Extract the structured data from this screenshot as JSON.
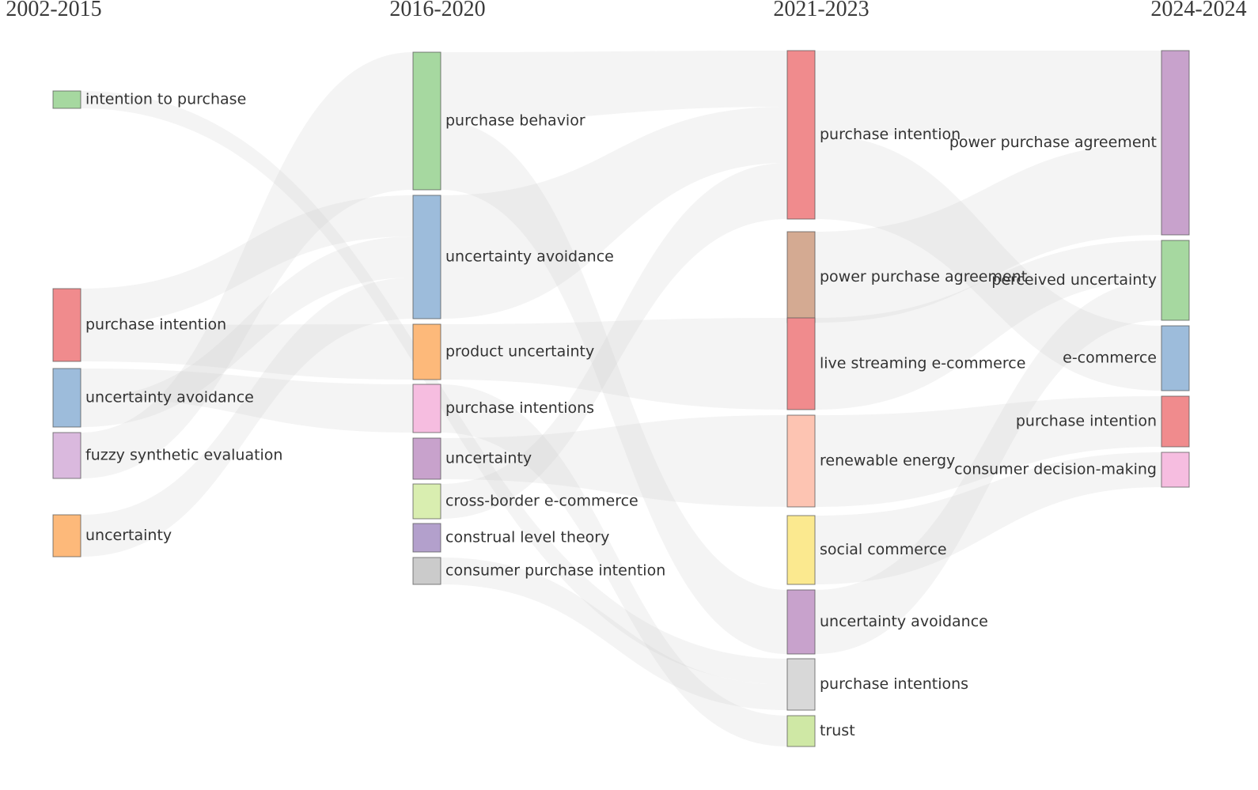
{
  "periods": [
    "2002-2015",
    "2016-2020",
    "2021-2023",
    "2024-2024"
  ],
  "columns": [
    [
      {
        "id": "c0n0",
        "label": "intention to purchase",
        "color": "#a6d8a0"
      },
      {
        "id": "c0n1",
        "label": "purchase intention",
        "color": "#f08b8d"
      },
      {
        "id": "c0n2",
        "label": "uncertainty avoidance",
        "color": "#9dbcdb"
      },
      {
        "id": "c0n3",
        "label": "fuzzy synthetic evaluation",
        "color": "#dab9de"
      },
      {
        "id": "c0n4",
        "label": "uncertainty",
        "color": "#fdb97a"
      }
    ],
    [
      {
        "id": "c1n0",
        "label": "purchase behavior",
        "color": "#a6d8a0"
      },
      {
        "id": "c1n1",
        "label": "uncertainty avoidance",
        "color": "#9dbcdb"
      },
      {
        "id": "c1n2",
        "label": "product uncertainty",
        "color": "#fdb97a"
      },
      {
        "id": "c1n3",
        "label": "purchase intentions",
        "color": "#f6bde0"
      },
      {
        "id": "c1n4",
        "label": "uncertainty",
        "color": "#c8a2cc"
      },
      {
        "id": "c1n5",
        "label": "cross-border e-commerce",
        "color": "#d9eeb0"
      },
      {
        "id": "c1n6",
        "label": "construal level theory",
        "color": "#b3a0cc"
      },
      {
        "id": "c1n7",
        "label": "consumer purchase intention",
        "color": "#cbcbcb"
      }
    ],
    [
      {
        "id": "c2n0",
        "label": "purchase intention",
        "color": "#f08b8d"
      },
      {
        "id": "c2n1",
        "label": "power purchase agreement",
        "color": "#d4aa92"
      },
      {
        "id": "c2n2",
        "label": "live streaming e-commerce",
        "color": "#f08b8d"
      },
      {
        "id": "c2n3",
        "label": "renewable energy",
        "color": "#fdc4b2"
      },
      {
        "id": "c2n4",
        "label": "social commerce",
        "color": "#fbe98f"
      },
      {
        "id": "c2n5",
        "label": "uncertainty avoidance",
        "color": "#c8a2cc"
      },
      {
        "id": "c2n6",
        "label": "purchase intentions",
        "color": "#d8d8d8"
      },
      {
        "id": "c2n7",
        "label": "trust",
        "color": "#cfe8a5"
      }
    ],
    [
      {
        "id": "c3n0",
        "label": "power purchase agreement",
        "color": "#c8a2cc"
      },
      {
        "id": "c3n1",
        "label": "perceived uncertainty",
        "color": "#a6d8a0"
      },
      {
        "id": "c3n2",
        "label": "e-commerce",
        "color": "#9dbcdb"
      },
      {
        "id": "c3n3",
        "label": "purchase intention",
        "color": "#f08b8d"
      },
      {
        "id": "c3n4",
        "label": "consumer decision-making",
        "color": "#f6bde0"
      }
    ]
  ],
  "links": [
    {
      "source": "c0n0",
      "target": "c2n6"
    },
    {
      "source": "c0n1",
      "target": "c1n1"
    },
    {
      "source": "c0n1",
      "target": "c1n2"
    },
    {
      "source": "c0n2",
      "target": "c1n3"
    },
    {
      "source": "c0n2",
      "target": "c1n1"
    },
    {
      "source": "c0n3",
      "target": "c1n0"
    },
    {
      "source": "c0n4",
      "target": "c1n1"
    },
    {
      "source": "c1n0",
      "target": "c2n0"
    },
    {
      "source": "c1n0",
      "target": "c2n5"
    },
    {
      "source": "c1n1",
      "target": "c2n0"
    },
    {
      "source": "c1n2",
      "target": "c2n2"
    },
    {
      "source": "c1n3",
      "target": "c2n7"
    },
    {
      "source": "c1n4",
      "target": "c2n3"
    },
    {
      "source": "c1n5",
      "target": "c2n0"
    },
    {
      "source": "c1n7",
      "target": "c2n6"
    },
    {
      "source": "c2n0",
      "target": "c3n0"
    },
    {
      "source": "c2n0",
      "target": "c3n2"
    },
    {
      "source": "c2n1",
      "target": "c3n0"
    },
    {
      "source": "c2n2",
      "target": "c3n1"
    },
    {
      "source": "c2n3",
      "target": "c3n3"
    },
    {
      "source": "c2n4",
      "target": "c3n4"
    },
    {
      "source": "c2n5",
      "target": "c3n1"
    }
  ]
}
